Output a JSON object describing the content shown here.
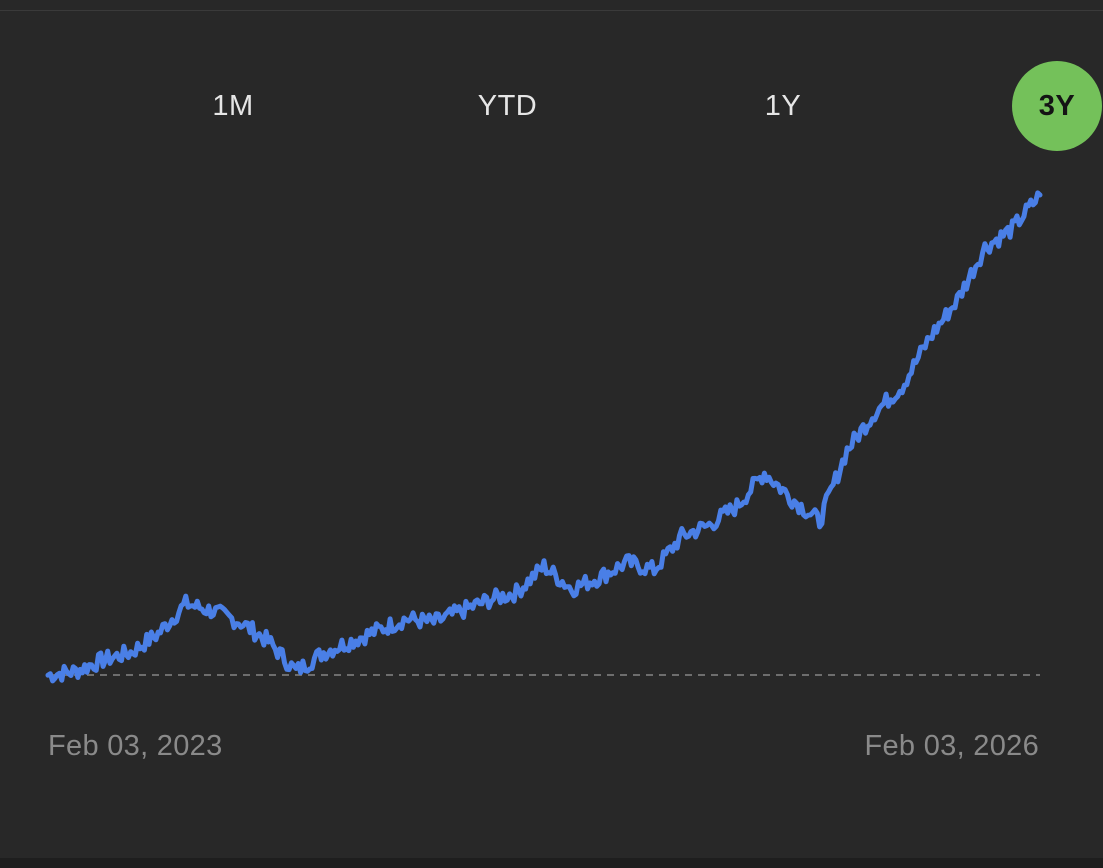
{
  "range_selector": {
    "tabs": [
      {
        "label": "1M",
        "selected": false
      },
      {
        "label": "YTD",
        "selected": false
      },
      {
        "label": "1Y",
        "selected": false
      },
      {
        "label": "3Y",
        "selected": true
      }
    ],
    "selected_color": "#74c15a"
  },
  "chart_data": {
    "type": "line",
    "title": "",
    "xlabel": "",
    "ylabel": "",
    "start_label": "Feb 03, 2023",
    "end_label": "Feb 03, 2026",
    "x": [
      "2023-02",
      "2023-03",
      "2023-04",
      "2023-05",
      "2023-06",
      "2023-07",
      "2023-08",
      "2023-09",
      "2023-10",
      "2023-11",
      "2023-12",
      "2024-01",
      "2024-02",
      "2024-03",
      "2024-04",
      "2024-05",
      "2024-06",
      "2024-07",
      "2024-08",
      "2024-09",
      "2024-10",
      "2024-11",
      "2024-12",
      "2025-01",
      "2025-02",
      "2025-03",
      "2025-04",
      "2025-05",
      "2025-06",
      "2025-07",
      "2025-08",
      "2025-09",
      "2025-10",
      "2025-11",
      "2025-12",
      "2026-01",
      "2026-02"
    ],
    "series": [
      {
        "color": "#4a7fe6",
        "values": [
          100,
          101,
          104,
          106,
          111,
          119,
          117,
          114,
          109,
          101,
          106,
          109,
          112,
          115,
          114,
          117,
          120,
          122,
          129,
          123,
          126,
          130,
          128,
          137,
          140,
          145,
          154,
          147,
          141,
          160,
          170,
          177,
          190,
          200,
          214,
          219,
          228
        ]
      }
    ],
    "baseline": 100,
    "baseline_style": "dashed",
    "ylim": [
      88,
      240
    ],
    "grid": false,
    "legend": "none"
  }
}
